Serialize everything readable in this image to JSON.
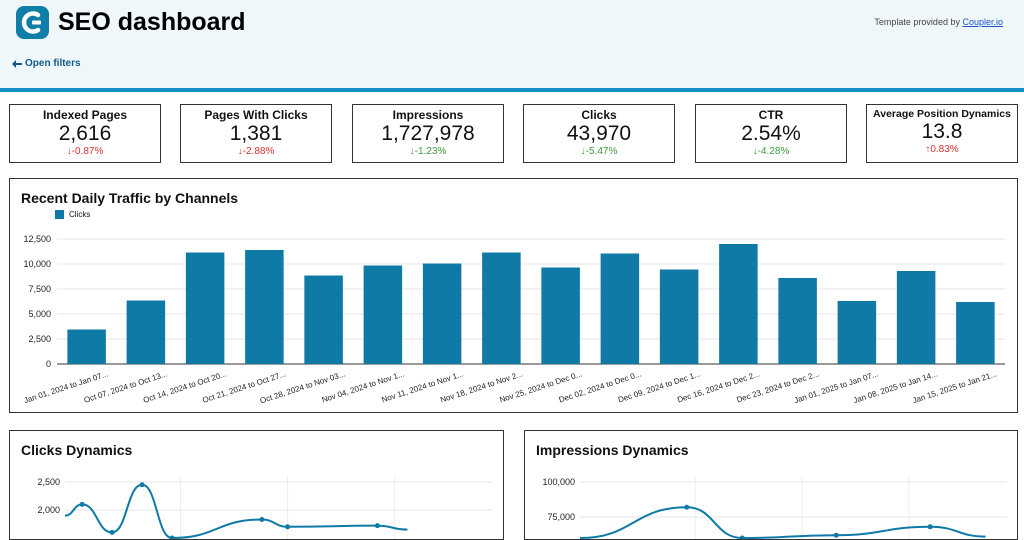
{
  "header": {
    "title": "SEO dashboard",
    "template_note_prefix": "Template provided by ",
    "template_note_link": "Coupler.io",
    "open_filters": "Open filters",
    "accent": "#1590c4"
  },
  "kpis": [
    {
      "title": "Indexed Pages",
      "value": "2,616",
      "change": "-0.87%",
      "arrow": "↓",
      "tone": "down-red"
    },
    {
      "title": "Pages With Clicks",
      "value": "1,381",
      "change": "-2.88%",
      "arrow": "↓",
      "tone": "down-red"
    },
    {
      "title": "Impressions",
      "value": "1,727,978",
      "change": "-1.23%",
      "arrow": "↓",
      "tone": "down-green"
    },
    {
      "title": "Clicks",
      "value": "43,970",
      "change": "-5.47%",
      "arrow": "↓",
      "tone": "down-green"
    },
    {
      "title": "CTR",
      "value": "2.54%",
      "change": "-4.28%",
      "arrow": "↓",
      "tone": "down-green"
    },
    {
      "title": "Average Position Dynamics",
      "value": "13.8",
      "change": "0.83%",
      "arrow": "↑",
      "tone": "up-red"
    }
  ],
  "traffic_panel": {
    "title": "Recent Daily Traffic by Channels",
    "legend": "Clicks"
  },
  "clicks_panel": {
    "title": "Clicks Dynamics"
  },
  "impressions_panel": {
    "title": "Impressions Dynamics"
  },
  "chart_data": [
    {
      "type": "bar",
      "title": "Recent Daily Traffic by Channels",
      "color": "#0f7aa5",
      "ylim": [
        0,
        12500
      ],
      "yticks": [
        "0",
        "2,500",
        "5,000",
        "7,500",
        "10,000",
        "12,500"
      ],
      "categories": [
        "Jan 01, 2024 to Jan 07...",
        "Oct 07, 2024 to Oct 13...",
        "Oct 14, 2024 to Oct 20...",
        "Oct 21, 2024 to Oct 27...",
        "Oct 28, 2024 to Nov 03...",
        "Nov 04, 2024 to Nov 1...",
        "Nov 11, 2024 to Nov 1...",
        "Nov 18, 2024 to Nov 2...",
        "Nov 25, 2024 to Dec 0...",
        "Dec 02, 2024 to Dec 0...",
        "Dec 09, 2024 to Dec 1...",
        "Dec 16, 2024 to Dec 2...",
        "Dec 23, 2024 to Dec 2...",
        "Jan 01, 2025 to Jan 07...",
        "Jan 08, 2025 to Jan 14...",
        "Jan 15, 2025 to Jan 21..."
      ],
      "series": [
        {
          "name": "Clicks",
          "values": [
            3450,
            6350,
            11150,
            11400,
            8850,
            9850,
            10050,
            11150,
            9650,
            11050,
            9450,
            12000,
            8600,
            6300,
            9300,
            6200
          ]
        }
      ]
    },
    {
      "type": "line",
      "title": "Clicks Dynamics",
      "color": "#0f7aa5",
      "yticks": [
        "2,000",
        "2,500"
      ],
      "ylim": [
        1700,
        2600
      ],
      "series": [
        {
          "values": [
            1900,
            2100,
            1600,
            2450,
            1500,
            1830,
            1700,
            1720,
            1650
          ]
        }
      ]
    },
    {
      "type": "line",
      "title": "Impressions Dynamics",
      "color": "#0f7aa5",
      "yticks": [
        "75,000",
        "100,000"
      ],
      "ylim": [
        65000,
        105000
      ],
      "series": [
        {
          "values": [
            60000,
            82000,
            60000,
            62000,
            68000,
            61000
          ]
        }
      ]
    }
  ]
}
